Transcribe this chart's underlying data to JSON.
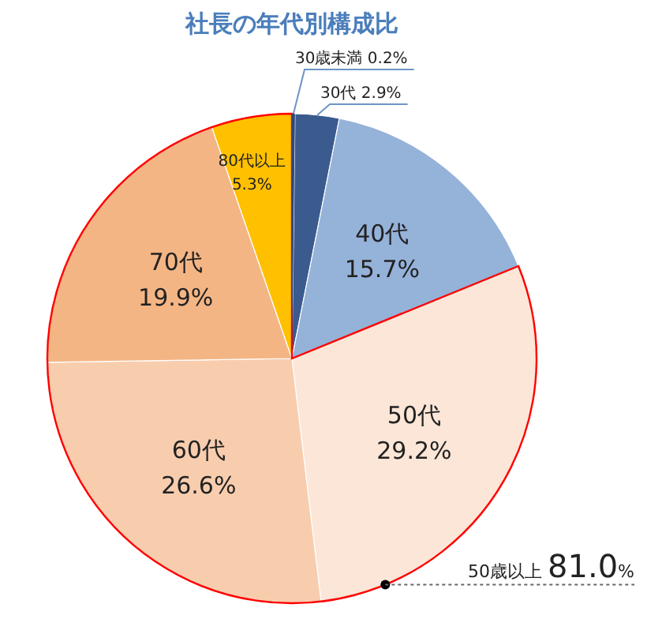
{
  "chart_data": {
    "type": "pie",
    "title": "社長の年代別構成比",
    "categories": [
      "30歳未満",
      "30代",
      "40代",
      "50代",
      "60代",
      "70代",
      "80代以上"
    ],
    "values": [
      0.2,
      2.9,
      15.7,
      29.2,
      26.6,
      19.9,
      5.3
    ],
    "value_labels": [
      "0.2%",
      "2.9%",
      "15.7%",
      "29.2%",
      "26.6%",
      "19.9%",
      "5.3%"
    ],
    "colors": [
      "#2e4a78",
      "#3b5b8f",
      "#95b2d9",
      "#fbe6d7",
      "#f8cdae",
      "#f4b585",
      "#ffc000"
    ],
    "annotations": [
      "50歳以上 81.0%"
    ]
  }
}
